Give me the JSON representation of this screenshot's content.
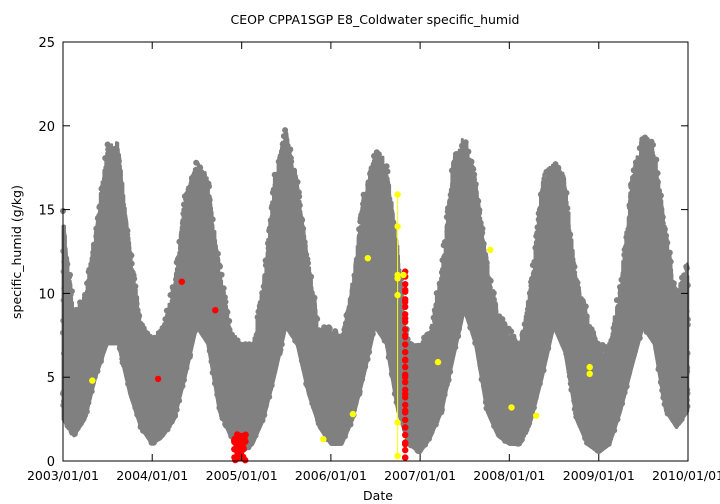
{
  "chart_data": {
    "type": "scatter",
    "title": "CEOP CPPA1SGP E8_Coldwater  specific_humid",
    "xlabel": "Date",
    "ylabel": "specific_humid (g/kg)",
    "xlim": [
      "2003-01-01",
      "2010-01-01"
    ],
    "ylim": [
      0,
      25
    ],
    "x_ticks": [
      "2003/01/01",
      "2004/01/01",
      "2005/01/01",
      "2006/01/01",
      "2007/01/01",
      "2008/01/01",
      "2009/01/01",
      "2010/01/01"
    ],
    "y_ticks": [
      0,
      5,
      10,
      15,
      20,
      25
    ],
    "grid": false,
    "colors": {
      "main": "#808080",
      "red": "#ff0000",
      "yellow": "#ffff00"
    },
    "series": [
      {
        "color": "#808080",
        "description": "hourly specific humidity, seasonal envelope (low / typical / high)",
        "x": [
          "2003-01-01",
          "2003-02-15",
          "2003-04-01",
          "2003-05-15",
          "2003-07-01",
          "2003-08-15",
          "2003-10-01",
          "2003-11-15",
          "2004-01-01",
          "2004-02-15",
          "2004-04-01",
          "2004-05-15",
          "2004-07-01",
          "2004-08-15",
          "2004-10-01",
          "2004-11-15",
          "2005-01-01",
          "2005-02-15",
          "2005-04-01",
          "2005-05-15",
          "2005-07-01",
          "2005-08-15",
          "2005-10-01",
          "2005-11-15",
          "2006-01-01",
          "2006-02-15",
          "2006-04-01",
          "2006-05-15",
          "2006-07-01",
          "2006-08-15",
          "2006-10-01",
          "2006-11-15",
          "2007-01-01",
          "2007-02-15",
          "2007-04-01",
          "2007-05-15",
          "2007-07-01",
          "2007-08-15",
          "2007-10-01",
          "2007-11-15",
          "2008-01-01",
          "2008-02-15",
          "2008-04-01",
          "2008-05-15",
          "2008-07-01",
          "2008-08-15",
          "2008-10-01",
          "2008-11-15",
          "2009-01-01",
          "2009-02-15",
          "2009-04-01",
          "2009-05-15",
          "2009-07-01",
          "2009-08-15",
          "2009-10-01",
          "2009-11-15",
          "2010-01-01"
        ],
        "low": [
          2.5,
          1.5,
          2.5,
          5,
          7,
          7,
          4,
          2,
          1,
          1.5,
          2.5,
          5,
          8,
          7,
          3,
          1.5,
          0.5,
          1,
          2.5,
          5,
          8,
          7,
          4,
          2,
          1,
          1,
          2.5,
          5,
          8,
          7,
          3,
          1,
          0.5,
          1.5,
          3,
          6,
          9,
          7,
          3,
          1.5,
          1,
          1,
          2.5,
          5,
          8,
          6.5,
          2.5,
          1,
          0.5,
          1,
          3,
          5.5,
          8,
          7,
          3,
          2,
          3
        ],
        "mid": [
          5,
          3.5,
          5,
          9,
          13,
          13,
          8,
          4,
          3.5,
          3.5,
          5.5,
          10,
          14,
          12,
          7,
          4,
          3,
          3,
          5,
          10,
          15,
          12,
          7,
          4,
          3,
          3,
          5,
          10,
          15,
          13,
          7,
          3.5,
          3,
          3.5,
          6,
          11,
          15,
          13,
          6,
          3.5,
          3,
          3,
          5,
          10,
          14,
          12,
          5,
          3,
          2.5,
          3,
          6,
          10,
          15,
          13,
          7,
          4,
          6
        ],
        "high": [
          15,
          9,
          10,
          14,
          19,
          19,
          13,
          8.5,
          7.5,
          8,
          11,
          16,
          18,
          17,
          12,
          8,
          7,
          7,
          11,
          17,
          20,
          17,
          12,
          8,
          8,
          7.5,
          11,
          16,
          18.5,
          18,
          13,
          7,
          7,
          8,
          12,
          18,
          19.5,
          17,
          12,
          9,
          8,
          7,
          11,
          17,
          18,
          17,
          11,
          9,
          7,
          7,
          11,
          17,
          19.5,
          19,
          14,
          10,
          12
        ]
      },
      {
        "name": "",
        "color": "#ff0000",
        "x": [
          "2004-01-25",
          "2004-05-01",
          "2004-09-15",
          "2004-12-10",
          "2004-12-15",
          "2004-12-20",
          "2004-12-25",
          "2004-12-30",
          "2005-01-03",
          "2006-11-01",
          "2006-11-01",
          "2006-11-01",
          "2006-11-01",
          "2006-11-01",
          "2006-11-01",
          "2006-11-01",
          "2006-11-01",
          "2006-11-01",
          "2006-11-01",
          "2006-11-01",
          "2006-11-01"
        ],
        "y": [
          4.9,
          10.7,
          9.0,
          1.0,
          0.5,
          1.2,
          0.2,
          1.5,
          0.8,
          11.3,
          10.2,
          9.5,
          8.5,
          7.5,
          6.0,
          5.0,
          4.0,
          3.0,
          2.0,
          1.0,
          0.2
        ]
      },
      {
        "name": "",
        "color": "#ffff00",
        "x": [
          "2003-05-01",
          "2005-12-01",
          "2006-04-01",
          "2006-06-01",
          "2006-10-01",
          "2006-10-01",
          "2006-10-01",
          "2006-10-01",
          "2006-10-01",
          "2006-10-01",
          "2006-10-01",
          "2006-10-25",
          "2007-03-15",
          "2007-10-15",
          "2008-01-10",
          "2008-04-20",
          "2008-11-25",
          "2008-11-25"
        ],
        "y": [
          4.8,
          1.3,
          2.8,
          12.1,
          15.9,
          14.0,
          11.1,
          10.9,
          9.9,
          2.3,
          0.3,
          11.1,
          5.9,
          12.6,
          3.2,
          2.7,
          5.6,
          5.2
        ]
      }
    ]
  }
}
